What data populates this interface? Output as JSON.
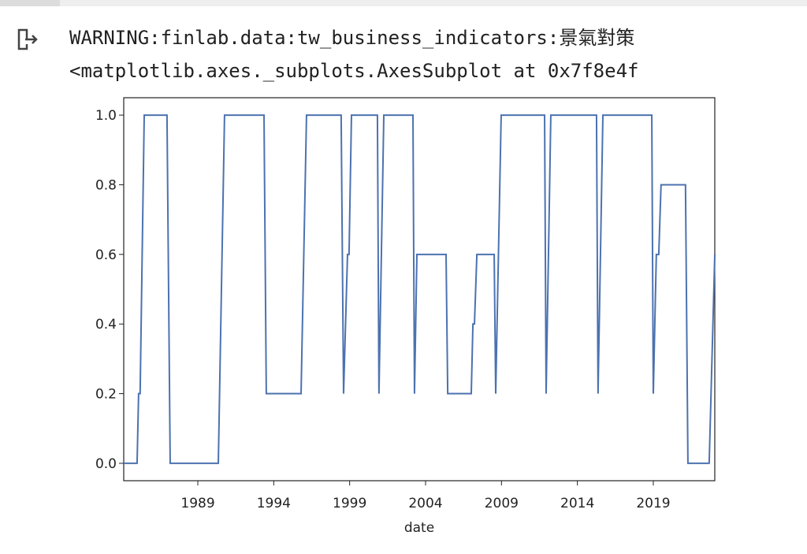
{
  "output": {
    "lines": [
      "WARNING:finlab.data:tw_business_indicators:景氣對策",
      "<matplotlib.axes._subplots.AxesSubplot at 0x7f8e4f"
    ]
  },
  "chart_data": {
    "type": "line",
    "xlabel": "date",
    "x": [
      1984.12,
      1985.0,
      1985.1,
      1985.2,
      1985.47,
      1986.97,
      1987.18,
      1990.35,
      1990.76,
      1993.36,
      1993.51,
      1995.8,
      1996.16,
      1998.44,
      1998.6,
      1998.86,
      1998.96,
      1999.12,
      2000.83,
      2000.93,
      2001.25,
      2003.17,
      2003.27,
      2003.43,
      2005.35,
      2005.46,
      2007.01,
      2007.12,
      2007.22,
      2007.38,
      2008.52,
      2008.62,
      2008.98,
      2011.84,
      2011.94,
      2012.25,
      2015.26,
      2015.36,
      2015.68,
      2018.9,
      2019.0,
      2019.1,
      2019.2,
      2019.36,
      2019.51,
      2021.12,
      2021.28,
      2022.68,
      2023.05
    ],
    "values": [
      0.0,
      0.0,
      0.2,
      0.2,
      1.0,
      1.0,
      0.0,
      0.0,
      1.0,
      1.0,
      0.2,
      0.2,
      1.0,
      1.0,
      0.2,
      0.6,
      0.6,
      1.0,
      1.0,
      0.2,
      1.0,
      1.0,
      0.2,
      0.6,
      0.6,
      0.2,
      0.2,
      0.4,
      0.4,
      0.6,
      0.6,
      0.2,
      1.0,
      1.0,
      0.2,
      1.0,
      1.0,
      0.2,
      1.0,
      1.0,
      0.2,
      0.4,
      0.6,
      0.6,
      0.8,
      0.8,
      0.0,
      0.0,
      0.6
    ],
    "color": "#4c72b0",
    "xlim": [
      1984.12,
      2023.05
    ],
    "xticks": [
      1989,
      1994,
      1999,
      2004,
      2009,
      2014,
      2019
    ],
    "ylim": [
      -0.05,
      1.05
    ],
    "yticks": [
      {
        "value": 0,
        "label": "0.0"
      },
      0.2,
      0.4,
      0.6,
      0.8,
      {
        "value": 1,
        "label": "1.0"
      }
    ],
    "grid": false
  }
}
